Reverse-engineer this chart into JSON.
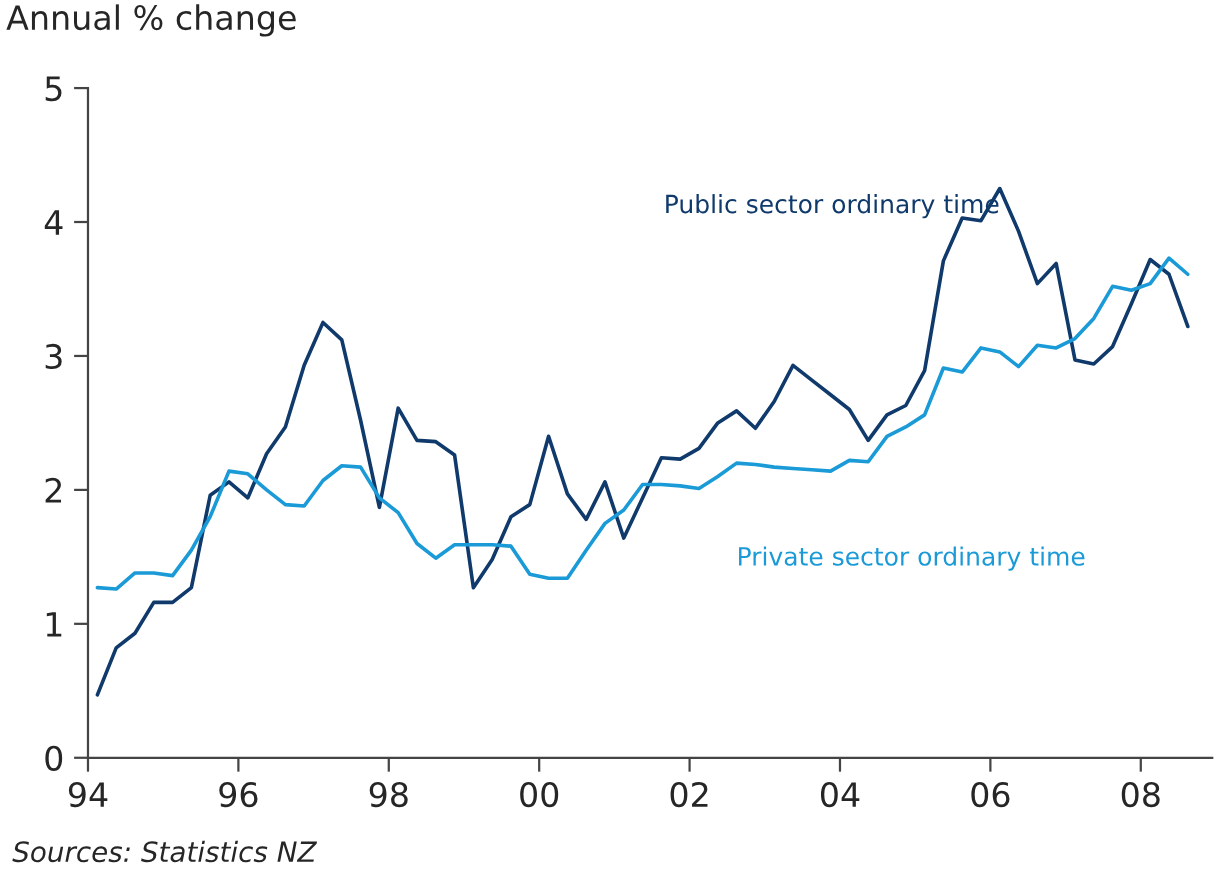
{
  "chart_data": {
    "type": "line",
    "ylabel": "Annual % change",
    "x": [
      1994.125,
      1994.375,
      1994.625,
      1994.875,
      1995.125,
      1995.375,
      1995.625,
      1995.875,
      1996.125,
      1996.375,
      1996.625,
      1996.875,
      1997.125,
      1997.375,
      1997.625,
      1997.875,
      1998.125,
      1998.375,
      1998.625,
      1998.875,
      1999.125,
      1999.375,
      1999.625,
      1999.875,
      2000.125,
      2000.375,
      2000.625,
      2000.875,
      2001.125,
      2001.375,
      2001.625,
      2001.875,
      2002.125,
      2002.375,
      2002.625,
      2002.875,
      2003.125,
      2003.375,
      2003.625,
      2003.875,
      2004.125,
      2004.375,
      2004.625,
      2004.875,
      2005.125,
      2005.375,
      2005.625,
      2005.875,
      2006.125,
      2006.375,
      2006.625,
      2006.875,
      2007.125,
      2007.375,
      2007.625,
      2007.875,
      2008.125,
      2008.375,
      2008.625
    ],
    "series": [
      {
        "name": "Public sector ordinary time",
        "color": "#0f3a6b",
        "values": [
          0.47,
          0.82,
          0.93,
          1.16,
          1.16,
          1.27,
          1.96,
          2.06,
          1.94,
          2.27,
          2.47,
          2.93,
          3.25,
          3.12,
          2.52,
          1.87,
          2.61,
          2.37,
          2.36,
          2.26,
          1.27,
          1.48,
          1.8,
          1.89,
          2.4,
          1.97,
          1.78,
          2.06,
          1.64,
          1.94,
          2.24,
          2.23,
          2.31,
          2.5,
          2.59,
          2.46,
          2.66,
          2.93,
          2.82,
          2.71,
          2.6,
          2.37,
          2.56,
          2.63,
          2.89,
          3.71,
          4.03,
          4.01,
          4.25,
          3.93,
          3.54,
          3.69,
          2.97,
          2.94,
          3.07,
          3.39,
          3.72,
          3.61,
          3.22
        ]
      },
      {
        "name": "Private sector ordinary time",
        "color": "#1a9ad6",
        "values": [
          1.27,
          1.26,
          1.38,
          1.38,
          1.36,
          1.55,
          1.8,
          2.14,
          2.12,
          2.0,
          1.89,
          1.88,
          2.07,
          2.18,
          2.17,
          1.94,
          1.83,
          1.6,
          1.49,
          1.59,
          1.59,
          1.59,
          1.58,
          1.37,
          1.34,
          1.34,
          1.55,
          1.75,
          1.85,
          2.04,
          2.04,
          2.03,
          2.01,
          2.1,
          2.2,
          2.19,
          2.17,
          2.16,
          2.15,
          2.14,
          2.22,
          2.21,
          2.4,
          2.47,
          2.56,
          2.91,
          2.88,
          3.06,
          3.03,
          2.92,
          3.08,
          3.06,
          3.13,
          3.28,
          3.52,
          3.49,
          3.54,
          3.73,
          3.61
        ]
      }
    ],
    "xlim": [
      1994,
      2008.95
    ],
    "xticks": [
      {
        "value": 1994,
        "label": "94"
      },
      {
        "value": 1996,
        "label": "96"
      },
      {
        "value": 1998,
        "label": "98"
      },
      {
        "value": 2000,
        "label": "00"
      },
      {
        "value": 2002,
        "label": "02"
      },
      {
        "value": 2004,
        "label": "04"
      },
      {
        "value": 2006,
        "label": "06"
      },
      {
        "value": 2008,
        "label": "08"
      }
    ],
    "ylim": [
      0,
      5
    ],
    "yticks": [
      0,
      1,
      2,
      3,
      4,
      5
    ],
    "grid": false,
    "legend": false,
    "marker": "none",
    "line_style": "solid",
    "annotations": [
      "Sources: Statistics NZ"
    ]
  }
}
